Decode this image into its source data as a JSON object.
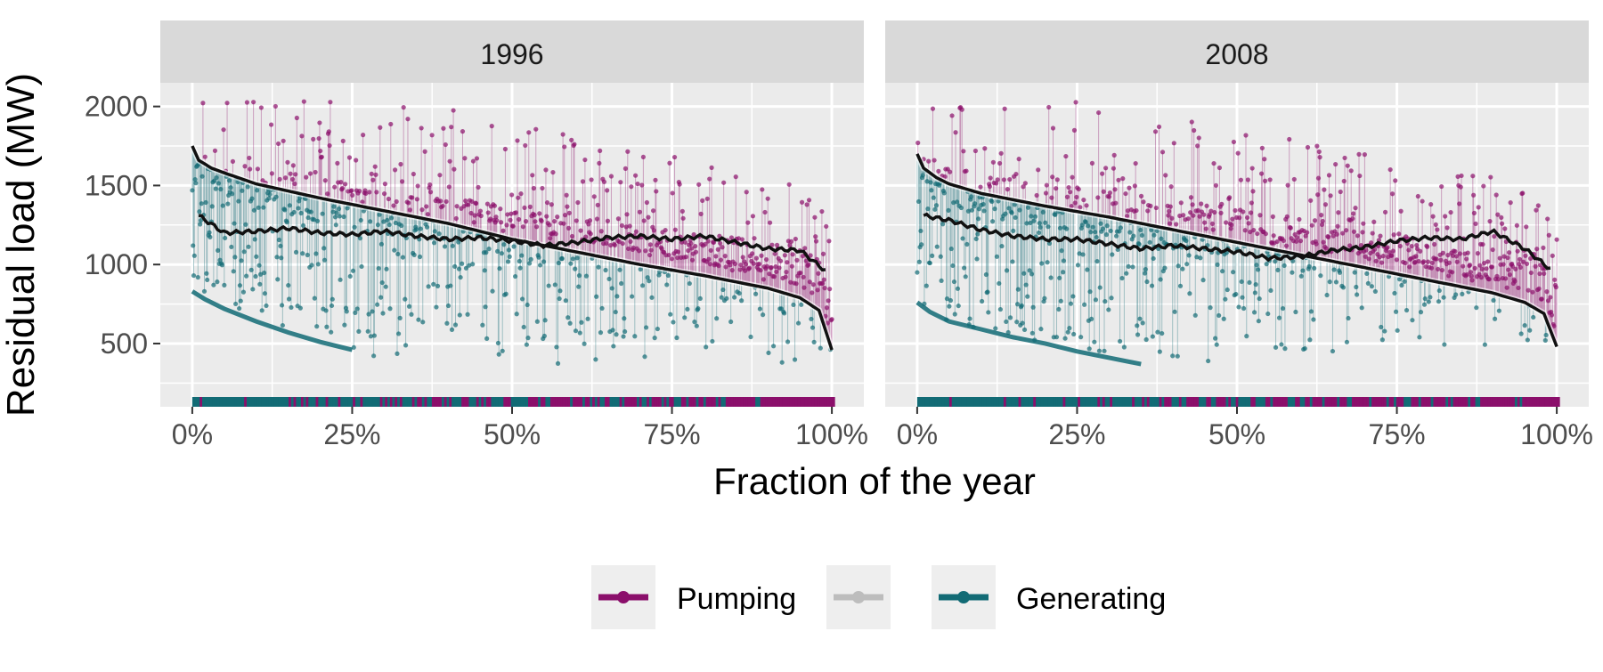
{
  "chart_data": {
    "type": "scatter",
    "facets": [
      "1996",
      "2008"
    ],
    "xlabel": "Fraction of the year",
    "ylabel": "Residual load (MW)",
    "x_ticks": [
      "0%",
      "25%",
      "50%",
      "75%",
      "100%"
    ],
    "x_tick_values": [
      0,
      0.25,
      0.5,
      0.75,
      1.0
    ],
    "xlim": [
      -0.05,
      1.05
    ],
    "y_ticks": [
      "500",
      "1000",
      "1500",
      "2000"
    ],
    "y_tick_values": [
      500,
      1000,
      1500,
      2000
    ],
    "ylim": [
      100,
      2150
    ],
    "grid": true,
    "legend_position": "bottom",
    "legend": [
      {
        "label": "Pumping",
        "color": "#8b0f6b"
      },
      {
        "label": "",
        "color": "#bdbdbd"
      },
      {
        "label": "Generating",
        "color": "#126b75"
      }
    ],
    "colors": {
      "pumping": "#8b0f6b",
      "generating": "#126b75",
      "curve": "#111111",
      "panel_bg": "#ebebeb",
      "strip_bg": "#d9d9d9",
      "grid": "#ffffff"
    },
    "panels": [
      {
        "title": "1996",
        "duration_curve": {
          "x": [
            0,
            0.01,
            0.03,
            0.05,
            0.1,
            0.2,
            0.3,
            0.4,
            0.5,
            0.6,
            0.7,
            0.8,
            0.9,
            0.95,
            0.98,
            1.0
          ],
          "y": [
            1750,
            1660,
            1610,
            1580,
            1510,
            1420,
            1340,
            1260,
            1160,
            1080,
            1000,
            930,
            850,
            790,
            710,
            460
          ]
        },
        "smoothed": {
          "x": [
            0.01,
            0.05,
            0.1,
            0.15,
            0.2,
            0.25,
            0.3,
            0.35,
            0.4,
            0.45,
            0.5,
            0.55,
            0.6,
            0.65,
            0.7,
            0.75,
            0.8,
            0.85,
            0.9,
            0.95,
            0.99
          ],
          "y": [
            1310,
            1200,
            1210,
            1230,
            1200,
            1190,
            1210,
            1180,
            1160,
            1170,
            1150,
            1120,
            1140,
            1170,
            1180,
            1160,
            1180,
            1140,
            1100,
            1090,
            960
          ]
        },
        "lower_envelope": {
          "x": [
            0,
            0.02,
            0.05,
            0.1,
            0.15,
            0.2,
            0.25
          ],
          "y": [
            830,
            780,
            720,
            640,
            570,
            510,
            460
          ]
        }
      },
      {
        "title": "2008",
        "duration_curve": {
          "x": [
            0,
            0.01,
            0.03,
            0.05,
            0.1,
            0.2,
            0.3,
            0.4,
            0.5,
            0.6,
            0.7,
            0.8,
            0.9,
            0.95,
            0.98,
            1.0
          ],
          "y": [
            1700,
            1610,
            1550,
            1510,
            1450,
            1370,
            1300,
            1220,
            1140,
            1060,
            980,
            900,
            820,
            760,
            690,
            480
          ]
        },
        "smoothed": {
          "x": [
            0.01,
            0.05,
            0.1,
            0.15,
            0.2,
            0.25,
            0.3,
            0.35,
            0.4,
            0.45,
            0.5,
            0.55,
            0.6,
            0.65,
            0.7,
            0.75,
            0.8,
            0.85,
            0.9,
            0.95,
            0.99
          ],
          "y": [
            1310,
            1280,
            1220,
            1180,
            1160,
            1160,
            1130,
            1100,
            1120,
            1100,
            1080,
            1040,
            1050,
            1090,
            1110,
            1150,
            1170,
            1160,
            1210,
            1100,
            970
          ]
        },
        "lower_envelope": {
          "x": [
            0,
            0.02,
            0.05,
            0.1,
            0.15,
            0.2,
            0.25,
            0.3,
            0.35
          ],
          "y": [
            760,
            700,
            640,
            590,
            540,
            500,
            450,
            410,
            370
          ]
        }
      }
    ]
  }
}
